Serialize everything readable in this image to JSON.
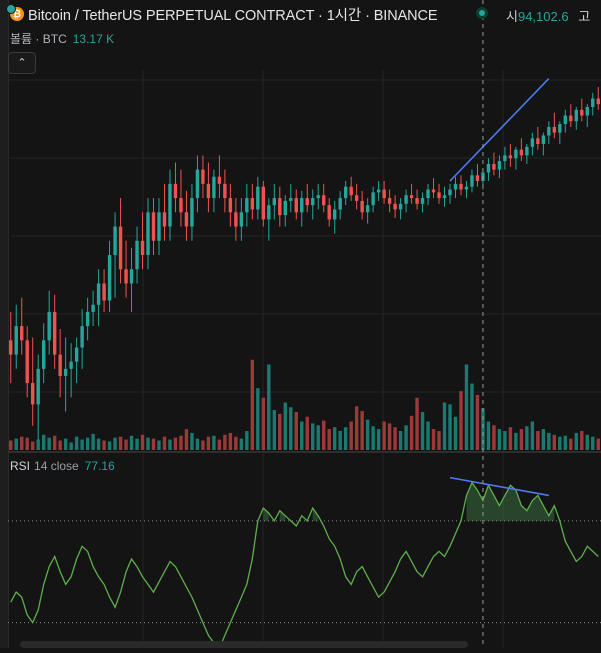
{
  "header": {
    "title": "Bitcoin / TetherUS PERPETUAL CONTRACT · 1시간 · BINANCE",
    "coin_icon": "bitcoin-icon",
    "ohlc_label": "시",
    "ohlc_value": "94,102.6",
    "ohlc_next_label": "고"
  },
  "volume_legend": {
    "label": "볼륨 · BTC",
    "value": "13.17 K"
  },
  "collapse_button": {
    "icon": "chevron-up-icon",
    "glyph": "⌃"
  },
  "rsi_legend": {
    "name": "RSI",
    "params": "14 close",
    "value": "77.16"
  },
  "colors": {
    "up": "#26a69a",
    "down": "#ef5350",
    "vol_up": "#1b7a70",
    "vol_down": "#9c3a3a",
    "rsi_line": "#5fae4d",
    "trendline": "#4a7cf0",
    "grid": "#232323",
    "crosshair": "#9a9a9a"
  },
  "chart_data": [
    {
      "type": "candlestick",
      "title": "Bitcoin / TetherUS PERPETUAL CONTRACT · 1시간 · BINANCE",
      "y_axis": "hidden",
      "candles": [
        [
          0.37,
          0.39,
          0.34,
          0.36
        ],
        [
          0.36,
          0.395,
          0.35,
          0.38
        ],
        [
          0.38,
          0.4,
          0.36,
          0.37
        ],
        [
          0.37,
          0.38,
          0.33,
          0.34
        ],
        [
          0.34,
          0.372,
          0.31,
          0.325
        ],
        [
          0.325,
          0.36,
          0.3,
          0.35
        ],
        [
          0.35,
          0.382,
          0.34,
          0.37
        ],
        [
          0.37,
          0.405,
          0.36,
          0.39
        ],
        [
          0.39,
          0.402,
          0.35,
          0.36
        ],
        [
          0.36,
          0.378,
          0.33,
          0.345
        ],
        [
          0.345,
          0.372,
          0.32,
          0.35
        ],
        [
          0.35,
          0.368,
          0.33,
          0.355
        ],
        [
          0.355,
          0.372,
          0.34,
          0.365
        ],
        [
          0.365,
          0.392,
          0.35,
          0.38
        ],
        [
          0.38,
          0.4,
          0.37,
          0.39
        ],
        [
          0.39,
          0.405,
          0.38,
          0.395
        ],
        [
          0.395,
          0.42,
          0.38,
          0.41
        ],
        [
          0.41,
          0.42,
          0.39,
          0.398
        ],
        [
          0.398,
          0.44,
          0.39,
          0.43
        ],
        [
          0.43,
          0.46,
          0.4,
          0.45
        ],
        [
          0.45,
          0.47,
          0.41,
          0.42
        ],
        [
          0.42,
          0.44,
          0.4,
          0.41
        ],
        [
          0.41,
          0.435,
          0.39,
          0.42
        ],
        [
          0.42,
          0.45,
          0.41,
          0.44
        ],
        [
          0.44,
          0.46,
          0.42,
          0.43
        ],
        [
          0.43,
          0.47,
          0.42,
          0.46
        ],
        [
          0.46,
          0.47,
          0.43,
          0.44
        ],
        [
          0.44,
          0.47,
          0.43,
          0.46
        ],
        [
          0.46,
          0.48,
          0.44,
          0.45
        ],
        [
          0.45,
          0.49,
          0.44,
          0.48
        ],
        [
          0.48,
          0.495,
          0.46,
          0.47
        ],
        [
          0.47,
          0.49,
          0.45,
          0.46
        ],
        [
          0.46,
          0.475,
          0.44,
          0.45
        ],
        [
          0.45,
          0.48,
          0.44,
          0.47
        ],
        [
          0.47,
          0.5,
          0.46,
          0.49
        ],
        [
          0.49,
          0.5,
          0.47,
          0.48
        ],
        [
          0.48,
          0.495,
          0.46,
          0.47
        ],
        [
          0.47,
          0.49,
          0.46,
          0.485
        ],
        [
          0.485,
          0.5,
          0.47,
          0.48
        ],
        [
          0.48,
          0.49,
          0.46,
          0.47
        ],
        [
          0.47,
          0.48,
          0.45,
          0.46
        ],
        [
          0.46,
          0.47,
          0.44,
          0.45
        ],
        [
          0.45,
          0.47,
          0.44,
          0.46
        ],
        [
          0.46,
          0.48,
          0.45,
          0.47
        ],
        [
          0.47,
          0.48,
          0.455,
          0.462
        ],
        [
          0.462,
          0.485,
          0.455,
          0.478
        ],
        [
          0.478,
          0.482,
          0.45,
          0.455
        ],
        [
          0.455,
          0.47,
          0.44,
          0.465
        ],
        [
          0.465,
          0.48,
          0.455,
          0.47
        ],
        [
          0.47,
          0.478,
          0.45,
          0.458
        ],
        [
          0.458,
          0.472,
          0.45,
          0.468
        ],
        [
          0.468,
          0.48,
          0.46,
          0.47
        ],
        [
          0.47,
          0.476,
          0.455,
          0.46
        ],
        [
          0.46,
          0.475,
          0.45,
          0.47
        ],
        [
          0.47,
          0.48,
          0.46,
          0.465
        ],
        [
          0.465,
          0.476,
          0.455,
          0.47
        ],
        [
          0.47,
          0.48,
          0.462,
          0.472
        ],
        [
          0.472,
          0.48,
          0.46,
          0.465
        ],
        [
          0.465,
          0.47,
          0.45,
          0.455
        ],
        [
          0.455,
          0.468,
          0.445,
          0.462
        ],
        [
          0.462,
          0.475,
          0.455,
          0.47
        ],
        [
          0.47,
          0.482,
          0.465,
          0.478
        ],
        [
          0.478,
          0.485,
          0.468,
          0.472
        ],
        [
          0.472,
          0.48,
          0.462,
          0.468
        ],
        [
          0.468,
          0.475,
          0.455,
          0.46
        ],
        [
          0.46,
          0.47,
          0.452,
          0.465
        ],
        [
          0.465,
          0.478,
          0.46,
          0.474
        ],
        [
          0.474,
          0.482,
          0.468,
          0.476
        ],
        [
          0.476,
          0.482,
          0.466,
          0.47
        ],
        [
          0.47,
          0.476,
          0.46,
          0.466
        ],
        [
          0.466,
          0.472,
          0.456,
          0.462
        ],
        [
          0.462,
          0.47,
          0.455,
          0.466
        ],
        [
          0.466,
          0.476,
          0.46,
          0.472
        ],
        [
          0.472,
          0.48,
          0.466,
          0.47
        ],
        [
          0.47,
          0.476,
          0.462,
          0.466
        ],
        [
          0.466,
          0.474,
          0.46,
          0.47
        ],
        [
          0.47,
          0.48,
          0.465,
          0.476
        ],
        [
          0.476,
          0.484,
          0.47,
          0.474
        ],
        [
          0.474,
          0.48,
          0.466,
          0.47
        ],
        [
          0.47,
          0.478,
          0.464,
          0.472
        ],
        [
          0.472,
          0.48,
          0.466,
          0.476
        ],
        [
          0.476,
          0.485,
          0.47,
          0.48
        ],
        [
          0.48,
          0.486,
          0.472,
          0.476
        ],
        [
          0.476,
          0.482,
          0.47,
          0.478
        ],
        [
          0.478,
          0.49,
          0.474,
          0.486
        ],
        [
          0.486,
          0.494,
          0.478,
          0.482
        ],
        [
          0.482,
          0.49,
          0.476,
          0.488
        ],
        [
          0.488,
          0.498,
          0.482,
          0.494
        ],
        [
          0.494,
          0.502,
          0.486,
          0.49
        ],
        [
          0.49,
          0.5,
          0.484,
          0.496
        ],
        [
          0.496,
          0.506,
          0.49,
          0.5
        ],
        [
          0.5,
          0.508,
          0.492,
          0.498
        ],
        [
          0.498,
          0.506,
          0.49,
          0.504
        ],
        [
          0.504,
          0.512,
          0.496,
          0.5
        ],
        [
          0.5,
          0.508,
          0.494,
          0.506
        ],
        [
          0.506,
          0.516,
          0.5,
          0.512
        ],
        [
          0.512,
          0.52,
          0.504,
          0.508
        ],
        [
          0.508,
          0.516,
          0.5,
          0.514
        ],
        [
          0.514,
          0.524,
          0.508,
          0.52
        ],
        [
          0.52,
          0.53,
          0.512,
          0.516
        ],
        [
          0.516,
          0.524,
          0.508,
          0.522
        ],
        [
          0.522,
          0.532,
          0.516,
          0.528
        ],
        [
          0.528,
          0.536,
          0.52,
          0.524
        ],
        [
          0.524,
          0.534,
          0.518,
          0.532
        ],
        [
          0.532,
          0.54,
          0.524,
          0.528
        ],
        [
          0.528,
          0.536,
          0.52,
          0.534
        ],
        [
          0.534,
          0.544,
          0.528,
          0.54
        ],
        [
          0.54,
          0.548,
          0.532,
          0.536
        ]
      ],
      "volume": [
        0.1,
        0.12,
        0.14,
        0.13,
        0.09,
        0.11,
        0.16,
        0.13,
        0.15,
        0.1,
        0.12,
        0.08,
        0.14,
        0.11,
        0.13,
        0.17,
        0.12,
        0.1,
        0.09,
        0.13,
        0.14,
        0.11,
        0.15,
        0.12,
        0.16,
        0.13,
        0.12,
        0.1,
        0.14,
        0.11,
        0.13,
        0.15,
        0.22,
        0.18,
        0.12,
        0.1,
        0.14,
        0.15,
        0.11,
        0.16,
        0.18,
        0.14,
        0.12,
        0.2,
        0.95,
        0.65,
        0.55,
        0.9,
        0.42,
        0.38,
        0.5,
        0.45,
        0.4,
        0.3,
        0.35,
        0.28,
        0.26,
        0.31,
        0.22,
        0.24,
        0.2,
        0.24,
        0.3,
        0.46,
        0.41,
        0.32,
        0.25,
        0.22,
        0.3,
        0.28,
        0.24,
        0.2,
        0.26,
        0.36,
        0.55,
        0.4,
        0.3,
        0.22,
        0.2,
        0.5,
        0.48,
        0.35,
        0.62,
        0.9,
        0.7,
        0.58,
        0.44,
        0.3,
        0.26,
        0.22,
        0.2,
        0.24,
        0.18,
        0.22,
        0.25,
        0.3,
        0.2,
        0.22,
        0.18,
        0.16,
        0.14,
        0.15,
        0.12,
        0.18,
        0.2,
        0.16,
        0.14,
        0.12
      ],
      "trendline_price": [
        [
          80,
          0.482
        ],
        [
          98,
          0.554
        ]
      ],
      "crosshair_index": 86
    },
    {
      "type": "line",
      "title": "RSI 14 close",
      "series": [
        {
          "name": "RSI",
          "values": [
            38,
            42,
            40,
            33,
            30,
            35,
            45,
            52,
            56,
            50,
            45,
            48,
            55,
            60,
            58,
            52,
            48,
            45,
            40,
            36,
            42,
            50,
            55,
            52,
            48,
            45,
            42,
            46,
            50,
            54,
            52,
            48,
            44,
            40,
            35,
            30,
            25,
            22,
            20,
            25,
            30,
            35,
            40,
            45,
            55,
            70,
            75,
            73,
            70,
            74,
            72,
            70,
            68,
            72,
            70,
            75,
            72,
            68,
            63,
            60,
            55,
            48,
            45,
            50,
            52,
            48,
            44,
            40,
            42,
            46,
            50,
            55,
            58,
            54,
            50,
            48,
            52,
            56,
            58,
            56,
            60,
            65,
            70,
            80,
            85,
            82,
            78,
            84,
            80,
            76,
            80,
            84,
            82,
            76,
            74,
            78,
            80,
            76,
            72,
            76,
            70,
            62,
            58,
            54,
            56,
            60,
            58,
            56
          ]
        }
      ],
      "reference_lines": [
        70,
        30
      ],
      "ylim": [
        20,
        90
      ],
      "trendline_rsi": [
        [
          80,
          87
        ],
        [
          98,
          80
        ]
      ]
    }
  ]
}
